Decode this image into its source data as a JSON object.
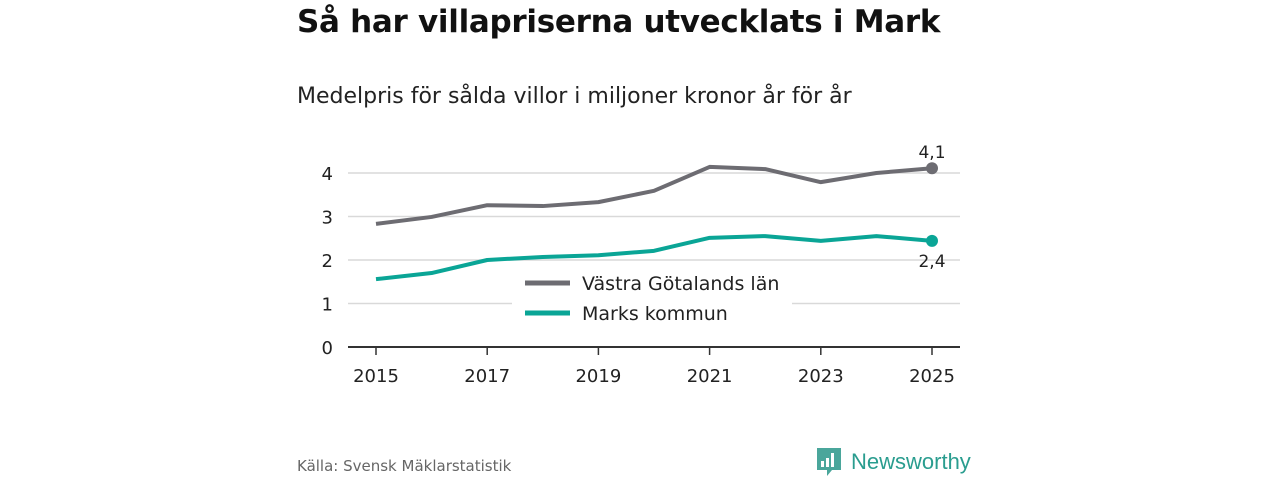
{
  "header": {
    "title": "Så har villapriserna utvecklats i Mark",
    "subtitle": "Medelpris för sålda villor i miljoner kronor år för år"
  },
  "footer": {
    "source": "Källa: Svensk Mäklarstatistik",
    "brand": "Newsworthy"
  },
  "chart_data": {
    "type": "line",
    "title": "Så har villapriserna utvecklats i Mark",
    "subtitle": "Medelpris för sålda villor i miljoner kronor år för år",
    "x": [
      2015,
      2016,
      2017,
      2018,
      2019,
      2020,
      2021,
      2022,
      2023,
      2024,
      2025
    ],
    "x_ticks": [
      "2015",
      "2017",
      "2019",
      "2021",
      "2023",
      "2025"
    ],
    "y_ticks": [
      "0",
      "1",
      "2",
      "3",
      "4"
    ],
    "ylim": [
      0,
      4
    ],
    "grid": true,
    "legend_placement": "center",
    "series": [
      {
        "name": "Västra Götalands län",
        "color": "#6d6c72",
        "values": [
          2.83,
          2.99,
          3.26,
          3.24,
          3.33,
          3.59,
          4.14,
          4.09,
          3.79,
          4.0,
          4.11
        ],
        "end_label": "4,1"
      },
      {
        "name": "Marks kommun",
        "color": "#0aa596",
        "values": [
          1.56,
          1.7,
          2.0,
          2.07,
          2.11,
          2.21,
          2.51,
          2.55,
          2.44,
          2.55,
          2.44
        ],
        "end_label": "2,4"
      }
    ]
  }
}
